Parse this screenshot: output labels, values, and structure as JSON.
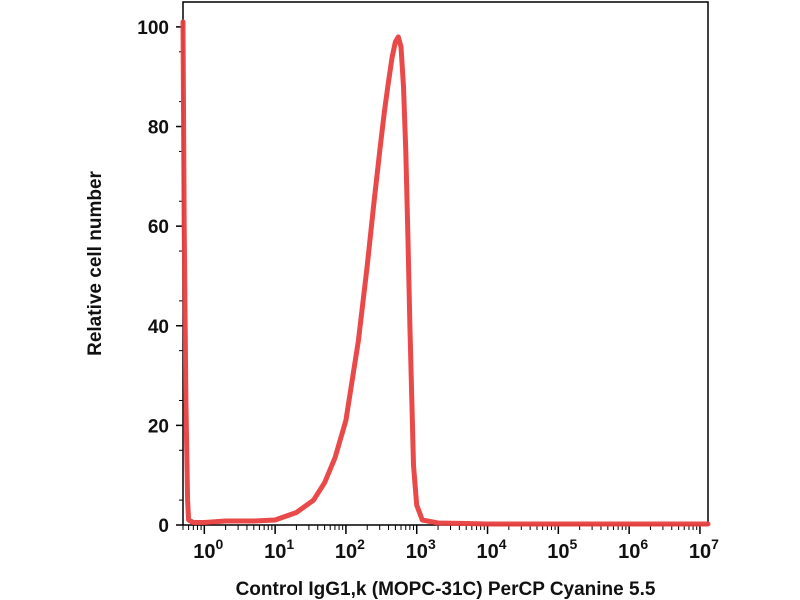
{
  "chart_data": {
    "type": "line",
    "xlabel": "Control IgG1,k (MOPC-31C) PerCP Cyanine 5.5",
    "ylabel": "Relative cell number",
    "x_scale": "log",
    "xlim": [
      0.5,
      13000000
    ],
    "ylim": [
      0,
      105
    ],
    "y_ticks": [
      0,
      20,
      40,
      60,
      80,
      100
    ],
    "x_ticks": [
      {
        "value": 1,
        "base": "10",
        "exp": "0"
      },
      {
        "value": 10,
        "base": "10",
        "exp": "1"
      },
      {
        "value": 100,
        "base": "10",
        "exp": "2"
      },
      {
        "value": 1000,
        "base": "10",
        "exp": "3"
      },
      {
        "value": 10000,
        "base": "10",
        "exp": "4"
      },
      {
        "value": 100000,
        "base": "10",
        "exp": "5"
      },
      {
        "value": 1000000,
        "base": "10",
        "exp": "6"
      },
      {
        "value": 10000000,
        "base": "10",
        "exp": "7"
      }
    ],
    "grid": false,
    "series": [
      {
        "color": "#e8403f",
        "x": [
          0.5,
          0.52,
          0.55,
          0.58,
          0.6,
          0.7,
          1.0,
          2.0,
          5.0,
          10,
          20,
          35,
          50,
          70,
          100,
          150,
          200,
          250,
          300,
          350,
          400,
          450,
          500,
          550,
          600,
          650,
          700,
          750,
          800,
          900,
          1000,
          1200,
          2000,
          5000,
          10000,
          100000,
          1000000,
          13000000
        ],
        "y": [
          101,
          60,
          25,
          5,
          1,
          0.5,
          0.5,
          0.8,
          0.8,
          1,
          2.5,
          5,
          8.5,
          13.5,
          21,
          37,
          52,
          65,
          75,
          83,
          89,
          94,
          97,
          98,
          96,
          88,
          75,
          58,
          40,
          12,
          4,
          1,
          0.4,
          0.3,
          0.2,
          0.2,
          0.2,
          0.2
        ]
      }
    ]
  }
}
